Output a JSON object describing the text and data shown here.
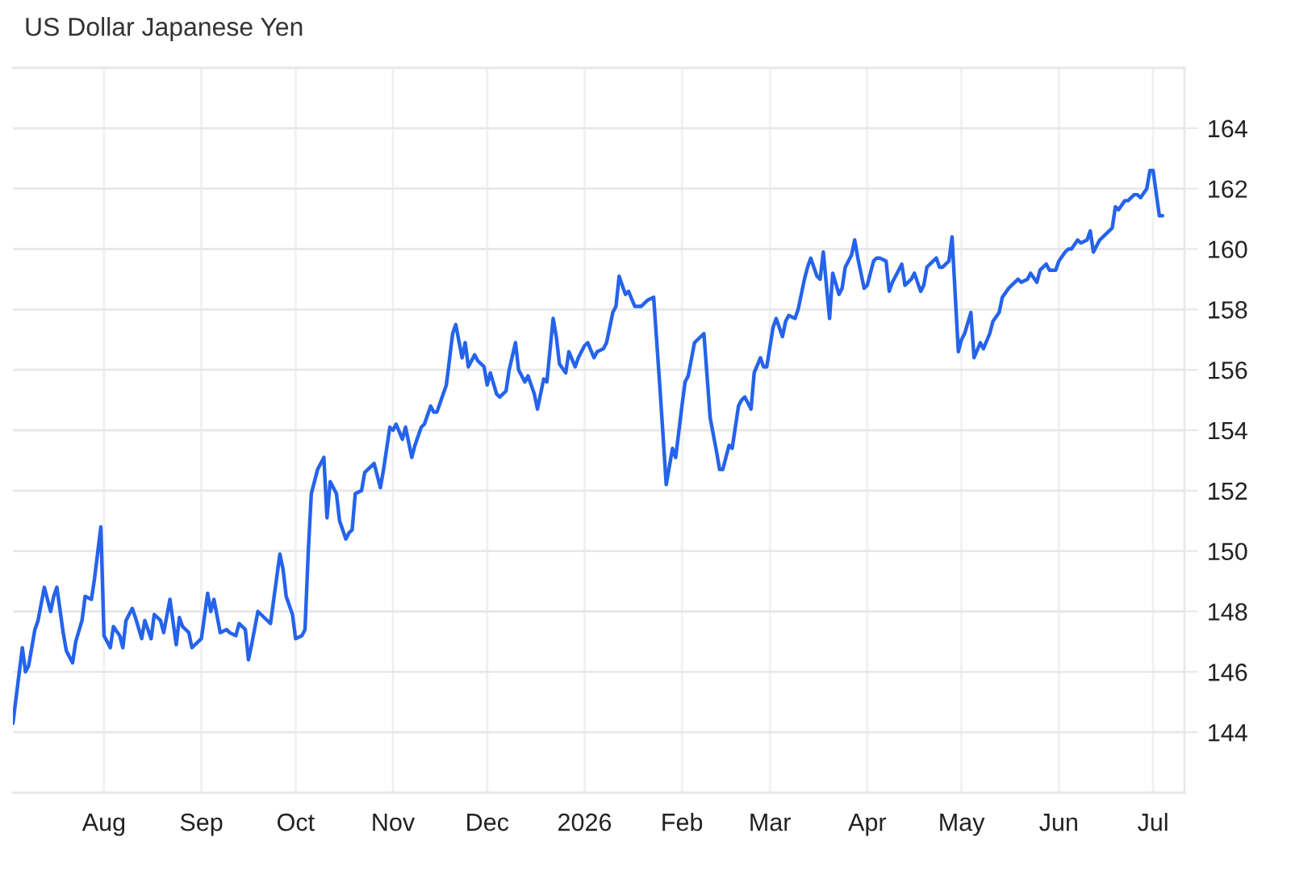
{
  "chart_data": {
    "type": "line",
    "title": "US Dollar Japanese Yen",
    "x": [
      "2025-07-03",
      "2025-07-06",
      "2025-07-07",
      "2025-07-08",
      "2025-07-10",
      "2025-07-11",
      "2025-07-13",
      "2025-07-15",
      "2025-07-16",
      "2025-07-17",
      "2025-07-19",
      "2025-07-20",
      "2025-07-22",
      "2025-07-23",
      "2025-07-25",
      "2025-07-26",
      "2025-07-28",
      "2025-07-29",
      "2025-07-31",
      "2025-08-01",
      "2025-08-03",
      "2025-08-04",
      "2025-08-06",
      "2025-08-07",
      "2025-08-08",
      "2025-08-10",
      "2025-08-11",
      "2025-08-13",
      "2025-08-14",
      "2025-08-16",
      "2025-08-17",
      "2025-08-19",
      "2025-08-20",
      "2025-08-22",
      "2025-08-24",
      "2025-08-25",
      "2025-08-26",
      "2025-08-28",
      "2025-08-29",
      "2025-09-01",
      "2025-09-03",
      "2025-09-04",
      "2025-09-05",
      "2025-09-07",
      "2025-09-09",
      "2025-09-10",
      "2025-09-12",
      "2025-09-13",
      "2025-09-15",
      "2025-09-16",
      "2025-09-17",
      "2025-09-19",
      "2025-09-21",
      "2025-09-23",
      "2025-09-26",
      "2025-09-27",
      "2025-09-28",
      "2025-09-30",
      "2025-10-01",
      "2025-10-03",
      "2025-10-04",
      "2025-10-05",
      "2025-10-06",
      "2025-10-08",
      "2025-10-10",
      "2025-10-11",
      "2025-10-12",
      "2025-10-14",
      "2025-10-15",
      "2025-10-17",
      "2025-10-18",
      "2025-10-19",
      "2025-10-20",
      "2025-10-22",
      "2025-10-23",
      "2025-10-25",
      "2025-10-26",
      "2025-10-28",
      "2025-10-29",
      "2025-10-31",
      "2025-11-01",
      "2025-11-02",
      "2025-11-04",
      "2025-11-05",
      "2025-11-07",
      "2025-11-08",
      "2025-11-10",
      "2025-11-11",
      "2025-11-13",
      "2025-11-14",
      "2025-11-15",
      "2025-11-17",
      "2025-11-18",
      "2025-11-20",
      "2025-11-21",
      "2025-11-23",
      "2025-11-24",
      "2025-11-25",
      "2025-11-27",
      "2025-11-28",
      "2025-11-30",
      "2025-12-01",
      "2025-12-02",
      "2025-12-04",
      "2025-12-05",
      "2025-12-07",
      "2025-12-08",
      "2025-12-10",
      "2025-12-11",
      "2025-12-13",
      "2025-12-14",
      "2025-12-16",
      "2025-12-17",
      "2025-12-19",
      "2025-12-20",
      "2025-12-22",
      "2025-12-23",
      "2025-12-24",
      "2025-12-26",
      "2025-12-27",
      "2025-12-29",
      "2025-12-30",
      "2026-01-01",
      "2026-01-02",
      "2026-01-04",
      "2026-01-05",
      "2026-01-07",
      "2026-01-08",
      "2026-01-10",
      "2026-01-11",
      "2026-01-12",
      "2026-01-14",
      "2026-01-15",
      "2026-01-17",
      "2026-01-19",
      "2026-01-21",
      "2026-01-23",
      "2026-01-25",
      "2026-01-26",
      "2026-01-27",
      "2026-01-29",
      "2026-01-30",
      "2026-02-01",
      "2026-02-02",
      "2026-02-03",
      "2026-02-05",
      "2026-02-06",
      "2026-02-08",
      "2026-02-09",
      "2026-02-10",
      "2026-02-12",
      "2026-02-13",
      "2026-02-14",
      "2026-02-16",
      "2026-02-17",
      "2026-02-19",
      "2026-02-20",
      "2026-02-21",
      "2026-02-23",
      "2026-02-24",
      "2026-02-26",
      "2026-02-27",
      "2026-02-28",
      "2026-03-02",
      "2026-03-03",
      "2026-03-05",
      "2026-03-06",
      "2026-03-07",
      "2026-03-09",
      "2026-03-10",
      "2026-03-12",
      "2026-03-13",
      "2026-03-14",
      "2026-03-16",
      "2026-03-17",
      "2026-03-18",
      "2026-03-20",
      "2026-03-21",
      "2026-03-23",
      "2026-03-24",
      "2026-03-25",
      "2026-03-27",
      "2026-03-28",
      "2026-03-29",
      "2026-03-31",
      "2026-04-01",
      "2026-04-03",
      "2026-04-04",
      "2026-04-05",
      "2026-04-07",
      "2026-04-08",
      "2026-04-09",
      "2026-04-11",
      "2026-04-12",
      "2026-04-13",
      "2026-04-15",
      "2026-04-16",
      "2026-04-18",
      "2026-04-19",
      "2026-04-20",
      "2026-04-21",
      "2026-04-23",
      "2026-04-24",
      "2026-04-25",
      "2026-04-27",
      "2026-04-28",
      "2026-04-30",
      "2026-05-01",
      "2026-05-02",
      "2026-05-04",
      "2026-05-05",
      "2026-05-07",
      "2026-05-08",
      "2026-05-10",
      "2026-05-11",
      "2026-05-13",
      "2026-05-14",
      "2026-05-16",
      "2026-05-17",
      "2026-05-19",
      "2026-05-20",
      "2026-05-22",
      "2026-05-23",
      "2026-05-25",
      "2026-05-26",
      "2026-05-28",
      "2026-05-29",
      "2026-05-31",
      "2026-06-01",
      "2026-06-03",
      "2026-06-04",
      "2026-06-05",
      "2026-06-07",
      "2026-06-08",
      "2026-06-10",
      "2026-06-11",
      "2026-06-12",
      "2026-06-14",
      "2026-06-15",
      "2026-06-16",
      "2026-06-18",
      "2026-06-19",
      "2026-06-20",
      "2026-06-22",
      "2026-06-23",
      "2026-06-25",
      "2026-06-26",
      "2026-06-27",
      "2026-06-29",
      "2026-06-30",
      "2026-07-01",
      "2026-07-03",
      "2026-07-04"
    ],
    "series": [
      {
        "color": "#2563eb",
        "values": [
          144.3,
          146.8,
          146.0,
          146.2,
          147.4,
          147.7,
          148.8,
          148.0,
          148.5,
          148.8,
          147.3,
          146.7,
          146.3,
          147.0,
          147.7,
          148.5,
          148.4,
          149.1,
          150.8,
          147.2,
          146.8,
          147.5,
          147.2,
          146.8,
          147.7,
          148.1,
          147.8,
          147.1,
          147.7,
          147.1,
          147.9,
          147.7,
          147.3,
          148.4,
          146.9,
          147.8,
          147.5,
          147.3,
          146.8,
          147.1,
          148.6,
          148.0,
          148.4,
          147.3,
          147.4,
          147.3,
          147.2,
          147.6,
          147.4,
          146.4,
          146.9,
          148.0,
          147.8,
          147.6,
          149.9,
          149.4,
          148.5,
          147.9,
          147.1,
          147.2,
          147.4,
          149.9,
          151.9,
          152.7,
          153.1,
          151.1,
          152.3,
          151.9,
          151.0,
          150.4,
          150.6,
          150.7,
          151.9,
          152.0,
          152.6,
          152.8,
          152.9,
          152.1,
          152.7,
          154.1,
          154.0,
          154.2,
          153.7,
          154.1,
          153.1,
          153.5,
          154.1,
          154.2,
          154.8,
          154.6,
          154.6,
          155.2,
          155.5,
          157.2,
          157.5,
          156.4,
          156.9,
          156.1,
          156.5,
          156.3,
          156.1,
          155.5,
          155.9,
          155.2,
          155.1,
          155.3,
          156.0,
          156.9,
          156.0,
          155.6,
          155.8,
          155.2,
          154.7,
          155.7,
          155.6,
          157.7,
          157.1,
          156.2,
          155.9,
          156.6,
          156.1,
          156.4,
          156.8,
          156.9,
          156.4,
          156.6,
          156.7,
          156.9,
          157.9,
          158.1,
          159.1,
          158.5,
          158.6,
          158.1,
          158.1,
          158.3,
          158.4,
          155.4,
          153.8,
          152.2,
          153.4,
          153.1,
          154.8,
          155.6,
          155.8,
          156.9,
          157.0,
          157.2,
          155.8,
          154.4,
          153.3,
          152.7,
          152.7,
          153.5,
          153.4,
          154.8,
          155.0,
          155.1,
          154.7,
          155.9,
          156.4,
          156.1,
          156.1,
          157.4,
          157.7,
          157.1,
          157.6,
          157.8,
          157.7,
          158.0,
          159.0,
          159.4,
          159.7,
          159.1,
          159.0,
          159.9,
          157.7,
          159.2,
          158.5,
          158.7,
          159.4,
          159.8,
          160.3,
          159.7,
          158.7,
          158.8,
          159.6,
          159.7,
          159.7,
          159.6,
          158.6,
          158.9,
          159.3,
          159.5,
          158.8,
          159.0,
          159.2,
          158.6,
          158.8,
          159.4,
          159.5,
          159.7,
          159.4,
          159.4,
          159.6,
          160.4,
          156.6,
          157.0,
          157.2,
          157.9,
          156.4,
          156.9,
          156.7,
          157.2,
          157.6,
          157.9,
          158.4,
          158.7,
          158.8,
          159.0,
          158.9,
          159.0,
          159.2,
          158.9,
          159.3,
          159.5,
          159.3,
          159.3,
          159.6,
          159.9,
          160.0,
          160.0,
          160.3,
          160.2,
          160.3,
          160.6,
          159.9,
          160.3,
          160.4,
          160.5,
          160.7,
          161.4,
          161.3,
          161.6,
          161.6,
          161.8,
          161.8,
          161.7,
          162.0,
          162.6,
          162.6,
          161.1,
          161.1
        ]
      }
    ],
    "xlim": [
      "2025-07-03",
      "2026-07-11"
    ],
    "ylim": [
      142,
      166
    ],
    "xticks": [
      {
        "value": "2025-08-01",
        "label": "Aug"
      },
      {
        "value": "2025-09-01",
        "label": "Sep"
      },
      {
        "value": "2025-10-01",
        "label": "Oct"
      },
      {
        "value": "2025-11-01",
        "label": "Nov"
      },
      {
        "value": "2025-12-01",
        "label": "Dec"
      },
      {
        "value": "2026-01-01",
        "label": "2026"
      },
      {
        "value": "2026-02-01",
        "label": "Feb"
      },
      {
        "value": "2026-03-01",
        "label": "Mar"
      },
      {
        "value": "2026-04-01",
        "label": "Apr"
      },
      {
        "value": "2026-05-01",
        "label": "May"
      },
      {
        "value": "2026-06-01",
        "label": "Jun"
      },
      {
        "value": "2026-07-01",
        "label": "Jul"
      }
    ],
    "yticks": [
      144,
      146,
      148,
      150,
      152,
      154,
      156,
      158,
      160,
      162,
      164
    ],
    "grid": true,
    "line_style": "solid"
  }
}
